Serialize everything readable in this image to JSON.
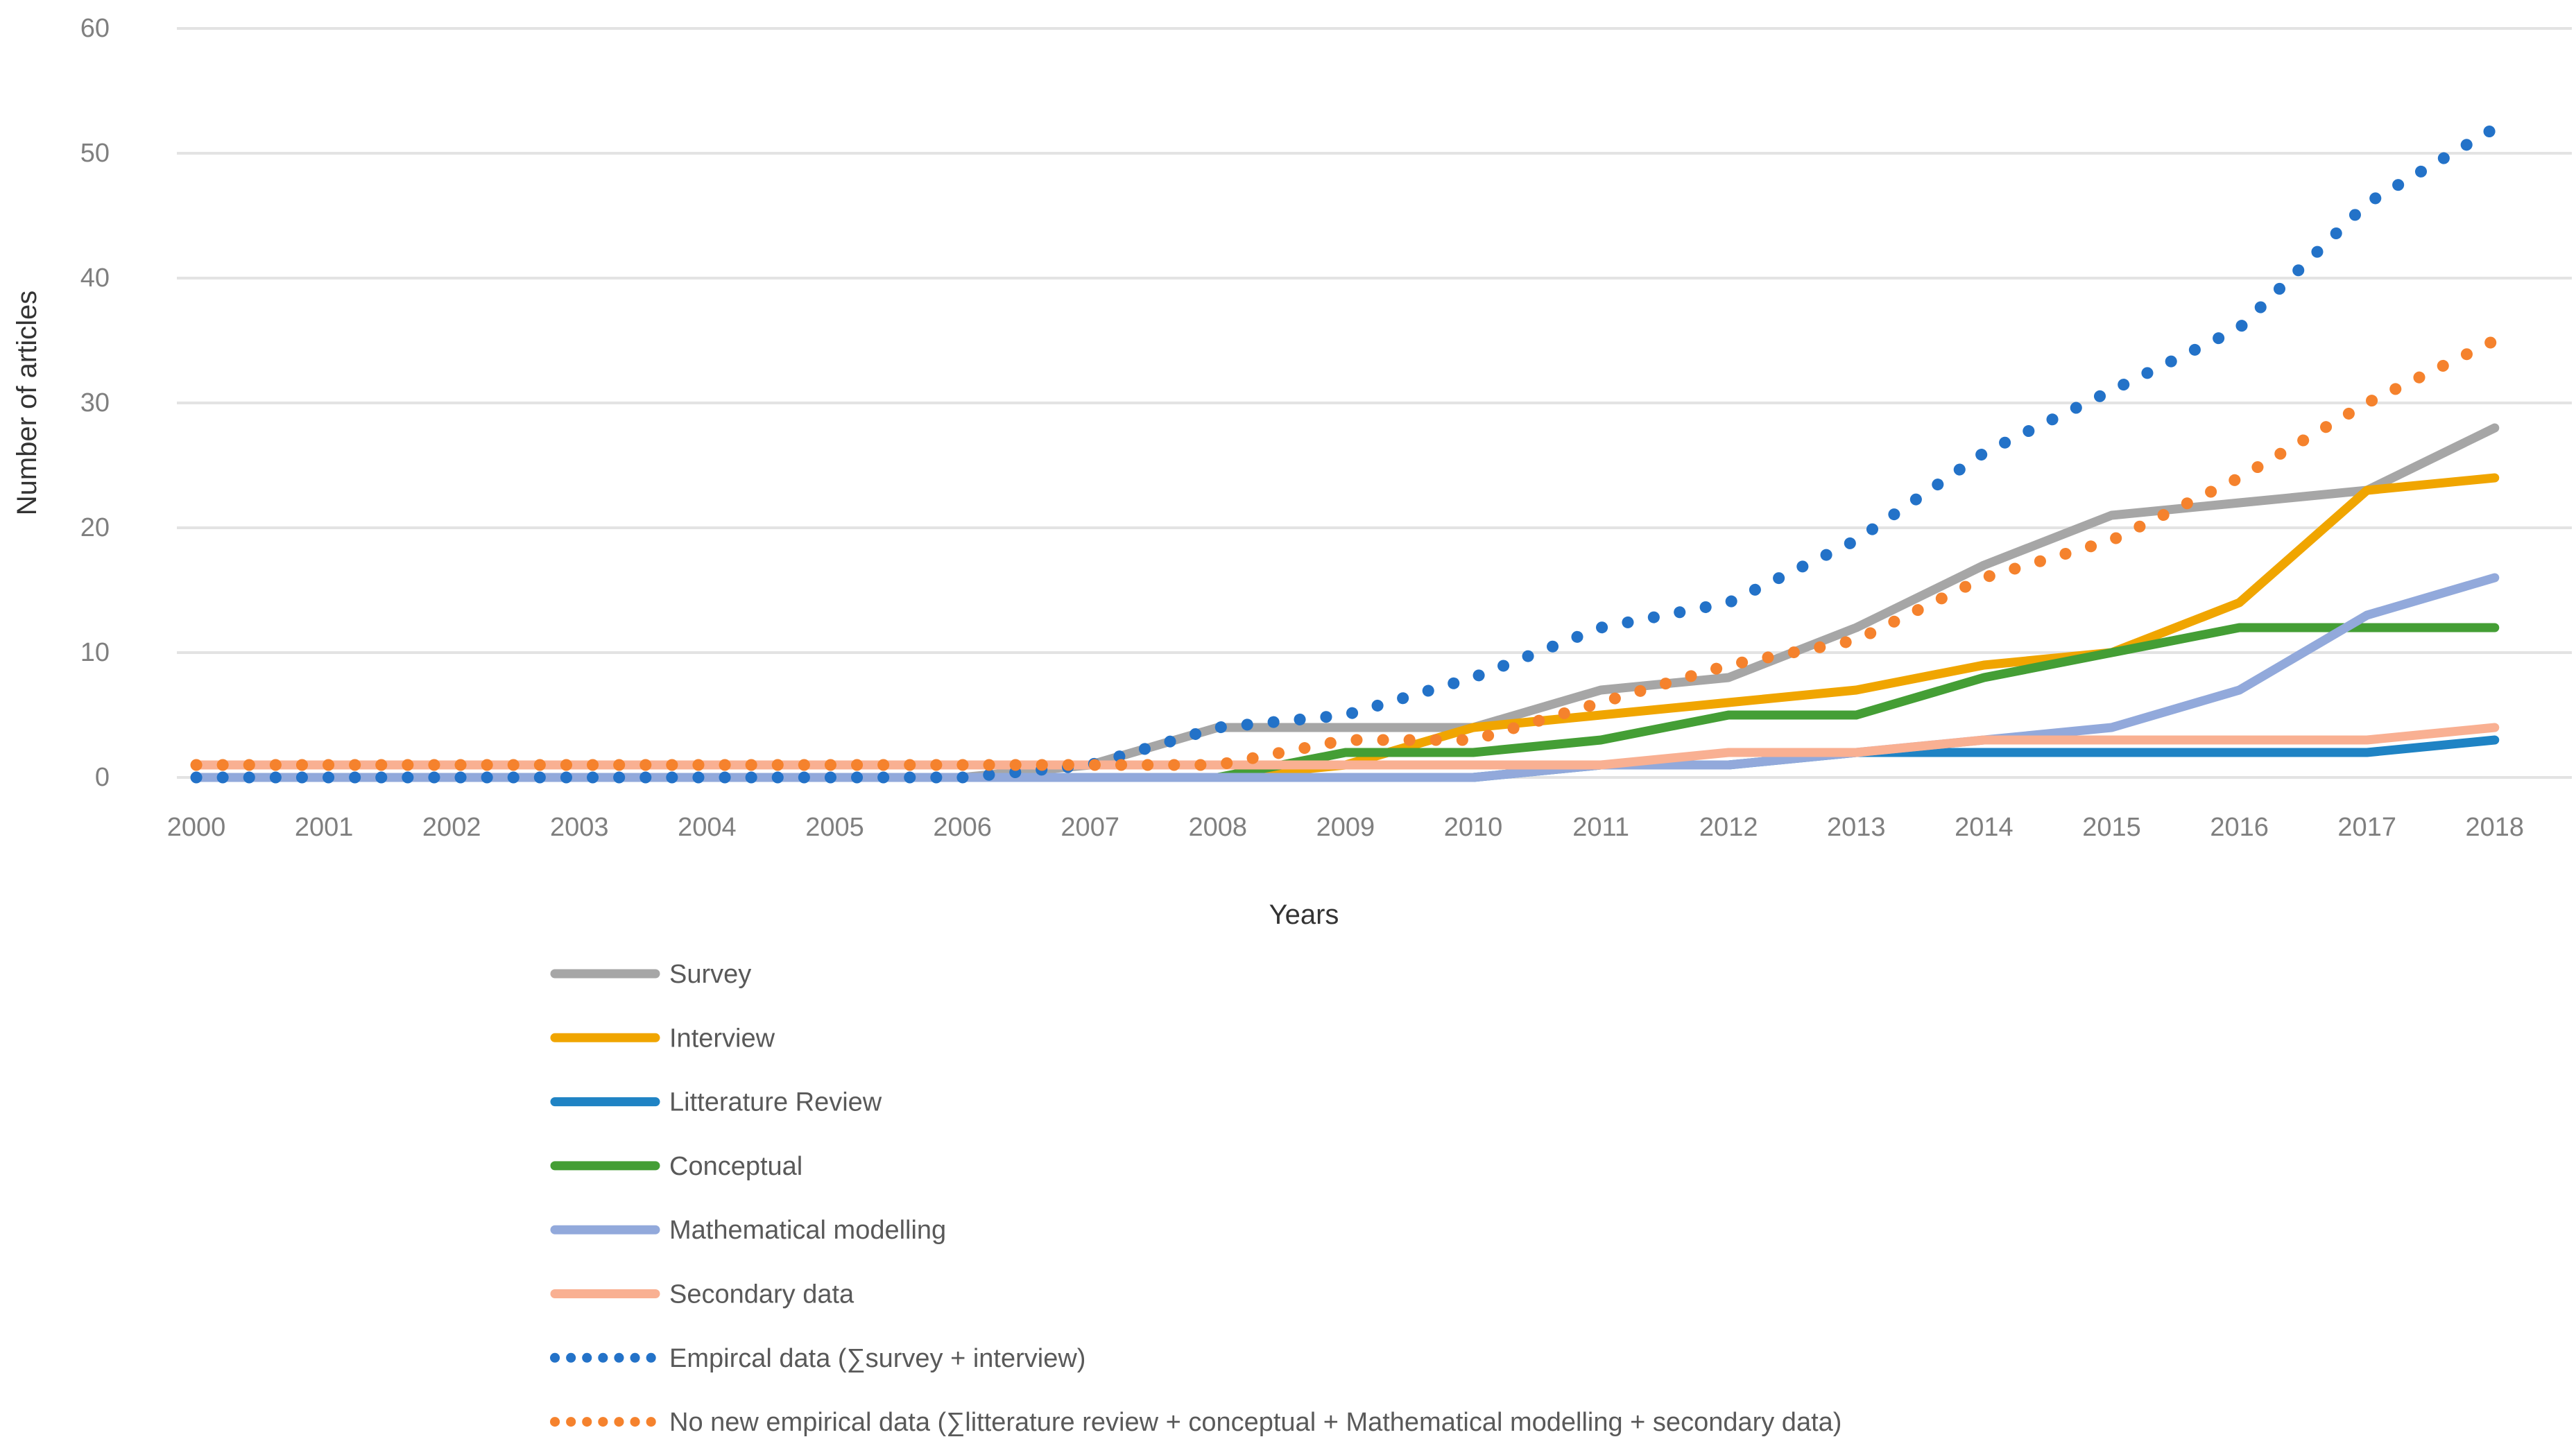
{
  "chart_data": {
    "type": "line",
    "title": "",
    "xlabel": "Years",
    "ylabel": "Number of articles",
    "x": [
      2000,
      2001,
      2002,
      2003,
      2004,
      2005,
      2006,
      2007,
      2008,
      2009,
      2010,
      2011,
      2012,
      2013,
      2014,
      2015,
      2016,
      2017,
      2018
    ],
    "ylim": [
      0,
      60
    ],
    "yticks": [
      0,
      10,
      20,
      30,
      40,
      50,
      60
    ],
    "grid": true,
    "legend_position": "bottom-left",
    "axis_tick_color": "#7f7f7f",
    "gridline_color": "#e3e3e3",
    "axis_title_color": "#333333",
    "legend_text_color": "#595959",
    "series": [
      {
        "name": "Survey",
        "color": "#a6a6a6",
        "style": "solid",
        "values": [
          0,
          0,
          0,
          0,
          0,
          0,
          0,
          1,
          4,
          4,
          4,
          7,
          8,
          12,
          17,
          21,
          22,
          23,
          28
        ]
      },
      {
        "name": "Interview",
        "color": "#f0a500",
        "style": "solid",
        "values": [
          0,
          0,
          0,
          0,
          0,
          0,
          0,
          0,
          0,
          1,
          4,
          5,
          6,
          7,
          9,
          10,
          14,
          23,
          24
        ]
      },
      {
        "name": "Litterature Review",
        "color": "#1f83c4",
        "style": "solid",
        "values": [
          0,
          0,
          0,
          0,
          0,
          0,
          0,
          0,
          0,
          0,
          0,
          1,
          1,
          2,
          2,
          2,
          2,
          2,
          3
        ]
      },
      {
        "name": "Conceptual",
        "color": "#449e35",
        "style": "solid",
        "values": [
          0,
          0,
          0,
          0,
          0,
          0,
          0,
          0,
          0,
          2,
          2,
          3,
          5,
          5,
          8,
          10,
          12,
          12,
          12
        ]
      },
      {
        "name": "Mathematical modelling",
        "color": "#92a9db",
        "style": "solid",
        "values": [
          0,
          0,
          0,
          0,
          0,
          0,
          0,
          0,
          0,
          0,
          0,
          1,
          1,
          2,
          3,
          4,
          7,
          13,
          16
        ]
      },
      {
        "name": "Secondary data",
        "color": "#f9b092",
        "style": "solid",
        "values": [
          1,
          1,
          1,
          1,
          1,
          1,
          1,
          1,
          1,
          1,
          1,
          1,
          2,
          2,
          3,
          3,
          3,
          3,
          4
        ]
      },
      {
        "name": "Empircal data (∑survey + interview)",
        "color": "#2372c8",
        "style": "dotted",
        "values": [
          0,
          0,
          0,
          0,
          0,
          0,
          0,
          1,
          4,
          5,
          8,
          12,
          14,
          19,
          26,
          31,
          36,
          46,
          52
        ]
      },
      {
        "name": "No new empirical data (∑litterature review + conceptual + Mathematical modelling + secondary data)",
        "color": "#f5822d",
        "style": "dotted",
        "values": [
          1,
          1,
          1,
          1,
          1,
          1,
          1,
          1,
          1,
          3,
          3,
          6,
          9,
          11,
          16,
          19,
          24,
          30,
          35
        ]
      }
    ]
  }
}
